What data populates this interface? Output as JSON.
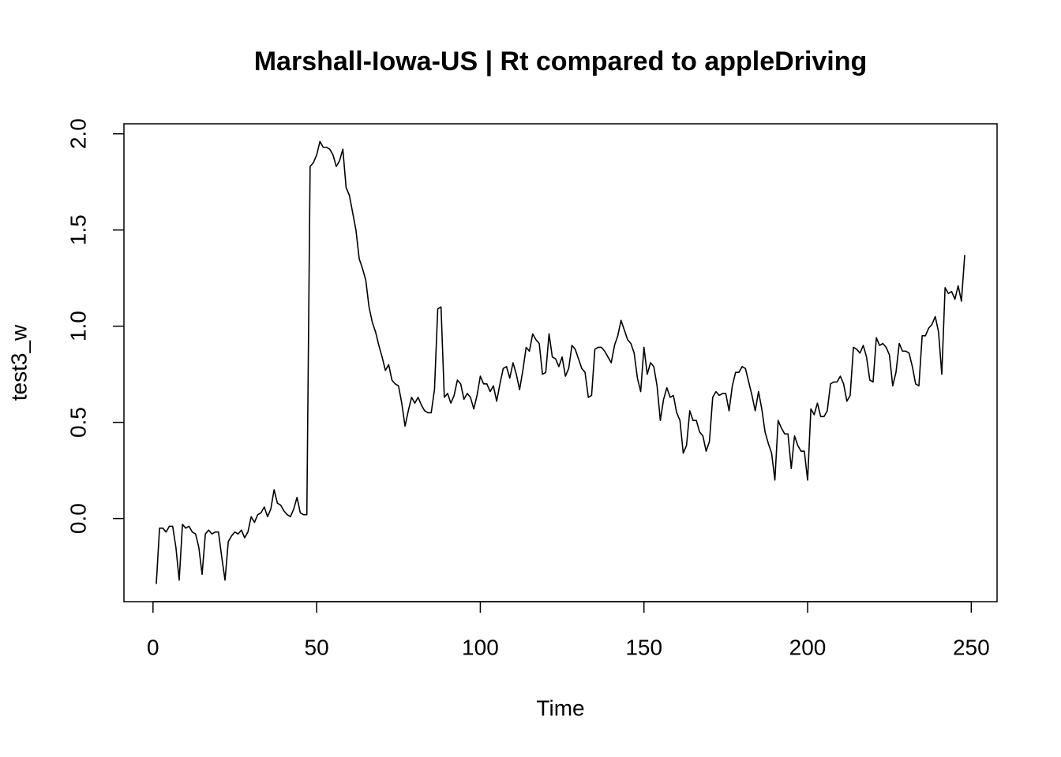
{
  "chart_data": {
    "type": "line",
    "title": "Marshall-Iowa-US | Rt compared to appleDriving",
    "xlabel": "Time",
    "ylabel": "test3_w",
    "color": "#000000",
    "xlim": [
      -8.88,
      257.88
    ],
    "ylim": [
      -0.432,
      2.052
    ],
    "xticks": [
      0,
      50,
      100,
      150,
      200,
      250
    ],
    "yticks": [
      {
        "value": 0,
        "label": "0.0"
      },
      0.5,
      {
        "value": 1,
        "label": "1.0"
      },
      1.5,
      {
        "value": 2,
        "label": "2.0"
      }
    ],
    "x": [
      1,
      2,
      3,
      4,
      5,
      6,
      7,
      8,
      9,
      10,
      11,
      12,
      13,
      14,
      15,
      16,
      17,
      18,
      19,
      20,
      21,
      22,
      23,
      24,
      25,
      26,
      27,
      28,
      29,
      30,
      31,
      32,
      33,
      34,
      35,
      36,
      37,
      38,
      39,
      40,
      41,
      42,
      43,
      44,
      45,
      46,
      47,
      48,
      49,
      50,
      51,
      52,
      53,
      54,
      55,
      56,
      57,
      58,
      59,
      60,
      61,
      62,
      63,
      64,
      65,
      66,
      67,
      68,
      69,
      70,
      71,
      72,
      73,
      74,
      75,
      76,
      77,
      78,
      79,
      80,
      81,
      82,
      83,
      84,
      85,
      86,
      87,
      88,
      89,
      90,
      91,
      92,
      93,
      94,
      95,
      96,
      97,
      98,
      99,
      100,
      101,
      102,
      103,
      104,
      105,
      106,
      107,
      108,
      109,
      110,
      111,
      112,
      113,
      114,
      115,
      116,
      117,
      118,
      119,
      120,
      121,
      122,
      123,
      124,
      125,
      126,
      127,
      128,
      129,
      130,
      131,
      132,
      133,
      134,
      135,
      136,
      137,
      138,
      139,
      140,
      141,
      142,
      143,
      144,
      145,
      146,
      147,
      148,
      149,
      150,
      151,
      152,
      153,
      154,
      155,
      156,
      157,
      158,
      159,
      160,
      161,
      162,
      163,
      164,
      165,
      166,
      167,
      168,
      169,
      170,
      171,
      172,
      173,
      174,
      175,
      176,
      177,
      178,
      179,
      180,
      181,
      182,
      183,
      184,
      185,
      186,
      187,
      188,
      189,
      190,
      191,
      192,
      193,
      194,
      195,
      196,
      197,
      198,
      199,
      200,
      201,
      202,
      203,
      204,
      205,
      206,
      207,
      208,
      209,
      210,
      211,
      212,
      213,
      214,
      215,
      216,
      217,
      218,
      219,
      220,
      221,
      222,
      223,
      224,
      225,
      226,
      227,
      228,
      229,
      230,
      231,
      232,
      233,
      234,
      235,
      236,
      237,
      238,
      239,
      240,
      241,
      242,
      243,
      244,
      245,
      246,
      247,
      248
    ],
    "values": [
      -0.34,
      -0.05,
      -0.05,
      -0.07,
      -0.04,
      -0.04,
      -0.15,
      -0.32,
      -0.03,
      -0.05,
      -0.04,
      -0.07,
      -0.08,
      -0.15,
      -0.29,
      -0.08,
      -0.06,
      -0.08,
      -0.07,
      -0.07,
      -0.2,
      -0.32,
      -0.12,
      -0.09,
      -0.07,
      -0.08,
      -0.06,
      -0.1,
      -0.07,
      0.01,
      -0.02,
      0.02,
      0.03,
      0.06,
      0.01,
      0.05,
      0.15,
      0.08,
      0.07,
      0.04,
      0.02,
      0.01,
      0.05,
      0.11,
      0.03,
      0.02,
      0.02,
      1.83,
      1.85,
      1.89,
      1.96,
      1.93,
      1.93,
      1.92,
      1.89,
      1.83,
      1.86,
      1.92,
      1.72,
      1.68,
      1.59,
      1.5,
      1.35,
      1.3,
      1.24,
      1.1,
      1.02,
      0.97,
      0.9,
      0.84,
      0.77,
      0.8,
      0.72,
      0.7,
      0.69,
      0.6,
      0.48,
      0.56,
      0.63,
      0.6,
      0.63,
      0.59,
      0.56,
      0.55,
      0.55,
      0.67,
      1.09,
      1.1,
      0.63,
      0.65,
      0.6,
      0.64,
      0.72,
      0.7,
      0.62,
      0.65,
      0.63,
      0.57,
      0.64,
      0.74,
      0.7,
      0.7,
      0.66,
      0.69,
      0.61,
      0.7,
      0.78,
      0.79,
      0.73,
      0.81,
      0.75,
      0.67,
      0.77,
      0.89,
      0.87,
      0.96,
      0.93,
      0.91,
      0.75,
      0.76,
      0.96,
      0.84,
      0.83,
      0.79,
      0.84,
      0.74,
      0.78,
      0.9,
      0.88,
      0.83,
      0.78,
      0.76,
      0.63,
      0.64,
      0.88,
      0.89,
      0.89,
      0.87,
      0.84,
      0.81,
      0.9,
      0.95,
      1.03,
      0.98,
      0.93,
      0.91,
      0.86,
      0.73,
      0.66,
      0.89,
      0.75,
      0.81,
      0.79,
      0.69,
      0.51,
      0.62,
      0.68,
      0.63,
      0.64,
      0.55,
      0.51,
      0.34,
      0.38,
      0.56,
      0.51,
      0.51,
      0.45,
      0.43,
      0.35,
      0.4,
      0.63,
      0.66,
      0.64,
      0.65,
      0.65,
      0.56,
      0.69,
      0.76,
      0.76,
      0.79,
      0.78,
      0.71,
      0.64,
      0.56,
      0.66,
      0.57,
      0.45,
      0.39,
      0.34,
      0.2,
      0.51,
      0.47,
      0.44,
      0.44,
      0.26,
      0.43,
      0.38,
      0.35,
      0.35,
      0.2,
      0.57,
      0.54,
      0.6,
      0.53,
      0.53,
      0.56,
      0.7,
      0.71,
      0.71,
      0.74,
      0.7,
      0.61,
      0.64,
      0.89,
      0.88,
      0.86,
      0.9,
      0.84,
      0.72,
      0.71,
      0.94,
      0.9,
      0.91,
      0.89,
      0.85,
      0.69,
      0.76,
      0.91,
      0.87,
      0.87,
      0.86,
      0.79,
      0.7,
      0.69,
      0.95,
      0.95,
      0.99,
      1.01,
      1.05,
      0.97,
      0.75,
      1.2,
      1.17,
      1.18,
      1.14,
      1.21,
      1.13,
      1.37
    ]
  }
}
